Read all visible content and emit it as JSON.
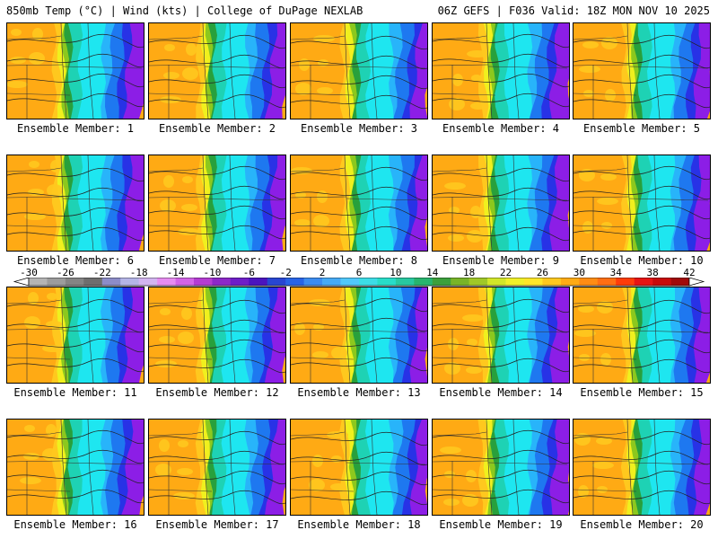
{
  "header": {
    "left_title": "850mb Temp (°C) | Wind (kts) | College of DuPage NEXLAB",
    "right_title": "06Z GEFS | F036 Valid: 18Z MON NOV 10 2025"
  },
  "caption_prefix": "Ensemble Member:",
  "members": [
    {
      "label": "Ensemble Member: 1"
    },
    {
      "label": "Ensemble Member: 2"
    },
    {
      "label": "Ensemble Member: 3"
    },
    {
      "label": "Ensemble Member: 4"
    },
    {
      "label": "Ensemble Member: 5"
    },
    {
      "label": "Ensemble Member: 6"
    },
    {
      "label": "Ensemble Member: 7"
    },
    {
      "label": "Ensemble Member: 8"
    },
    {
      "label": "Ensemble Member: 9"
    },
    {
      "label": "Ensemble Member: 10"
    },
    {
      "label": "Ensemble Member: 11"
    },
    {
      "label": "Ensemble Member: 12"
    },
    {
      "label": "Ensemble Member: 13"
    },
    {
      "label": "Ensemble Member: 14"
    },
    {
      "label": "Ensemble Member: 15"
    },
    {
      "label": "Ensemble Member: 16"
    },
    {
      "label": "Ensemble Member: 17"
    },
    {
      "label": "Ensemble Member: 18"
    },
    {
      "label": "Ensemble Member: 19"
    },
    {
      "label": "Ensemble Member: 20"
    }
  ],
  "colorbar": {
    "unit": "°C",
    "tick_labels": [
      "-30",
      "-26",
      "-22",
      "-18",
      "-14",
      "-10",
      "-6",
      "-2",
      "2",
      "6",
      "10",
      "14",
      "18",
      "22",
      "26",
      "30",
      "34",
      "38",
      "42"
    ],
    "min": -30,
    "max": 42,
    "step": 2,
    "colors": [
      "#b4b4b4",
      "#9c9c9c",
      "#848484",
      "#6e6e6e",
      "#8c8cc8",
      "#b4b4e6",
      "#d2b4f0",
      "#e68cf0",
      "#d264e6",
      "#b43cd2",
      "#8c28c8",
      "#6e1ec8",
      "#4b14be",
      "#2846d2",
      "#2864e6",
      "#3c8cf0",
      "#46aaf5",
      "#50c8fa",
      "#3cdce6",
      "#28dcc8",
      "#28c8a0",
      "#28b46e",
      "#3ca03c",
      "#78b428",
      "#a0c828",
      "#d2e628",
      "#f0f028",
      "#ffe628",
      "#ffc81e",
      "#ffaa14",
      "#ff8c14",
      "#ff6e14",
      "#ff3c0a",
      "#e61414",
      "#c80a0a",
      "#a00a0a"
    ],
    "end_colors": [
      "#ffffff",
      "#ffffff"
    ]
  },
  "field_colors": {
    "purple": "#8c1ee6",
    "blue_dark": "#2832e6",
    "blue": "#1e78f0",
    "blue_light": "#28b4fa",
    "cyan": "#1ee6f0",
    "teal": "#1ed2b4",
    "green": "#28a03c",
    "green_light": "#8cc81e",
    "yellow": "#f0f01e",
    "orange_light": "#ffc81e",
    "orange": "#ffaa14"
  }
}
